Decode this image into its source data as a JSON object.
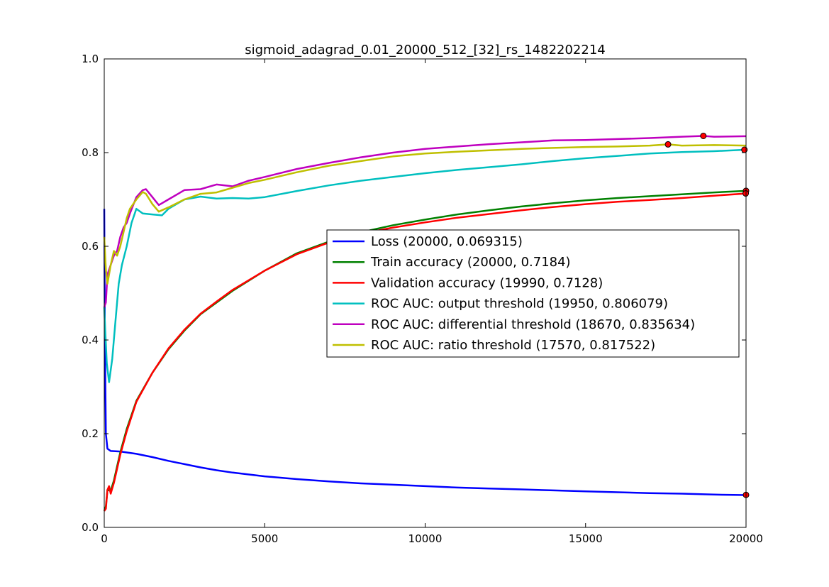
{
  "chart_data": {
    "type": "line",
    "title": "sigmoid_adagrad_0.01_20000_512_[32]_rs_1482202214",
    "xlabel": "",
    "ylabel": "",
    "xlim": [
      0,
      20000
    ],
    "ylim": [
      0.0,
      1.0
    ],
    "xticks": [
      "0",
      "5000",
      "10000",
      "15000",
      "20000"
    ],
    "yticks": [
      "0.0",
      "0.2",
      "0.4",
      "0.6",
      "0.8",
      "1.0"
    ],
    "grid": false,
    "legend_position": "center-right",
    "series": [
      {
        "name": "Loss (20000, 0.069315)",
        "color": "#0000ff",
        "x": [
          0,
          20,
          50,
          100,
          200,
          500,
          1000,
          1500,
          2000,
          2500,
          3000,
          3500,
          4000,
          5000,
          6000,
          7000,
          8000,
          9000,
          10000,
          11000,
          12000,
          13000,
          14000,
          15000,
          16000,
          17000,
          18000,
          19000,
          20000
        ],
        "y": [
          0.68,
          0.4,
          0.2,
          0.168,
          0.163,
          0.162,
          0.157,
          0.15,
          0.142,
          0.135,
          0.128,
          0.122,
          0.117,
          0.109,
          0.103,
          0.098,
          0.094,
          0.091,
          0.088,
          0.085,
          0.083,
          0.081,
          0.079,
          0.077,
          0.075,
          0.073,
          0.072,
          0.07,
          0.069
        ],
        "marker": {
          "x": 20000,
          "y": 0.069315
        }
      },
      {
        "name": "Train accuracy (20000, 0.7184)",
        "color": "#008000",
        "x": [
          0,
          50,
          100,
          200,
          300,
          400,
          500,
          700,
          1000,
          1500,
          2000,
          2500,
          3000,
          3500,
          4000,
          5000,
          6000,
          7000,
          8000,
          9000,
          10000,
          11000,
          12000,
          13000,
          14000,
          15000,
          16000,
          17000,
          18000,
          19000,
          20000
        ],
        "y": [
          0.035,
          0.045,
          0.08,
          0.078,
          0.1,
          0.13,
          0.16,
          0.21,
          0.27,
          0.33,
          0.38,
          0.42,
          0.455,
          0.48,
          0.505,
          0.548,
          0.585,
          0.61,
          0.63,
          0.645,
          0.657,
          0.668,
          0.677,
          0.685,
          0.692,
          0.698,
          0.703,
          0.707,
          0.711,
          0.715,
          0.7184
        ],
        "marker": {
          "x": 20000,
          "y": 0.7184
        }
      },
      {
        "name": "Validation accuracy (19990, 0.7128)",
        "color": "#ff0000",
        "x": [
          0,
          50,
          100,
          150,
          200,
          300,
          400,
          500,
          700,
          1000,
          1500,
          2000,
          2500,
          3000,
          3500,
          4000,
          5000,
          6000,
          7000,
          8000,
          9000,
          10000,
          11000,
          12000,
          13000,
          14000,
          15000,
          16000,
          17000,
          18000,
          19000,
          19990
        ],
        "y": [
          0.035,
          0.04,
          0.08,
          0.088,
          0.072,
          0.095,
          0.125,
          0.155,
          0.205,
          0.268,
          0.33,
          0.382,
          0.422,
          0.456,
          0.482,
          0.507,
          0.548,
          0.583,
          0.608,
          0.627,
          0.64,
          0.651,
          0.661,
          0.669,
          0.677,
          0.684,
          0.69,
          0.695,
          0.699,
          0.703,
          0.708,
          0.7128
        ],
        "marker": {
          "x": 19990,
          "y": 0.7128
        }
      },
      {
        "name": "ROC AUC: output threshold (19950, 0.806079)",
        "color": "#00bfbf",
        "x": [
          0,
          30,
          80,
          150,
          250,
          350,
          450,
          550,
          700,
          850,
          1000,
          1200,
          1500,
          1800,
          2000,
          2500,
          3000,
          3500,
          4000,
          4500,
          5000,
          6000,
          7000,
          8000,
          9000,
          10000,
          11000,
          12000,
          13000,
          14000,
          15000,
          16000,
          17000,
          18000,
          19000,
          19950,
          20000
        ],
        "y": [
          0.47,
          0.42,
          0.35,
          0.31,
          0.36,
          0.44,
          0.52,
          0.56,
          0.6,
          0.65,
          0.68,
          0.67,
          0.668,
          0.666,
          0.68,
          0.7,
          0.706,
          0.702,
          0.703,
          0.702,
          0.705,
          0.718,
          0.73,
          0.74,
          0.748,
          0.756,
          0.763,
          0.769,
          0.775,
          0.782,
          0.788,
          0.793,
          0.798,
          0.801,
          0.803,
          0.806079,
          0.806
        ],
        "marker": {
          "x": 19950,
          "y": 0.806079
        }
      },
      {
        "name": "ROC AUC: differential threshold (18670, 0.835634)",
        "color": "#bf00bf",
        "x": [
          0,
          50,
          100,
          200,
          300,
          400,
          500,
          600,
          700,
          800,
          1000,
          1200,
          1300,
          1500,
          1700,
          2000,
          2500,
          3000,
          3500,
          4000,
          4500,
          5000,
          6000,
          7000,
          8000,
          9000,
          10000,
          11000,
          12000,
          13000,
          14000,
          15000,
          16000,
          17000,
          18000,
          18670,
          19000,
          20000
        ],
        "y": [
          0.47,
          0.48,
          0.54,
          0.56,
          0.58,
          0.59,
          0.62,
          0.64,
          0.65,
          0.67,
          0.705,
          0.72,
          0.722,
          0.705,
          0.688,
          0.7,
          0.72,
          0.722,
          0.732,
          0.728,
          0.74,
          0.748,
          0.765,
          0.778,
          0.79,
          0.8,
          0.808,
          0.813,
          0.818,
          0.822,
          0.826,
          0.827,
          0.829,
          0.831,
          0.834,
          0.835634,
          0.834,
          0.835
        ],
        "marker": {
          "x": 18670,
          "y": 0.835634
        }
      },
      {
        "name": "ROC AUC: ratio threshold (17570, 0.817522)",
        "color": "#bfbf00",
        "x": [
          0,
          50,
          100,
          200,
          300,
          400,
          500,
          600,
          700,
          800,
          1000,
          1200,
          1300,
          1500,
          1700,
          2000,
          2500,
          3000,
          3500,
          4000,
          4500,
          5000,
          6000,
          7000,
          8000,
          9000,
          10000,
          11000,
          12000,
          13000,
          14000,
          15000,
          16000,
          17000,
          17570,
          18000,
          19000,
          20000
        ],
        "y": [
          0.62,
          0.55,
          0.52,
          0.56,
          0.59,
          0.58,
          0.6,
          0.63,
          0.66,
          0.68,
          0.7,
          0.716,
          0.712,
          0.69,
          0.674,
          0.683,
          0.7,
          0.712,
          0.715,
          0.725,
          0.735,
          0.742,
          0.758,
          0.772,
          0.782,
          0.792,
          0.798,
          0.802,
          0.805,
          0.808,
          0.81,
          0.812,
          0.813,
          0.815,
          0.817522,
          0.815,
          0.816,
          0.815
        ],
        "marker": {
          "x": 17570,
          "y": 0.817522
        }
      }
    ]
  }
}
